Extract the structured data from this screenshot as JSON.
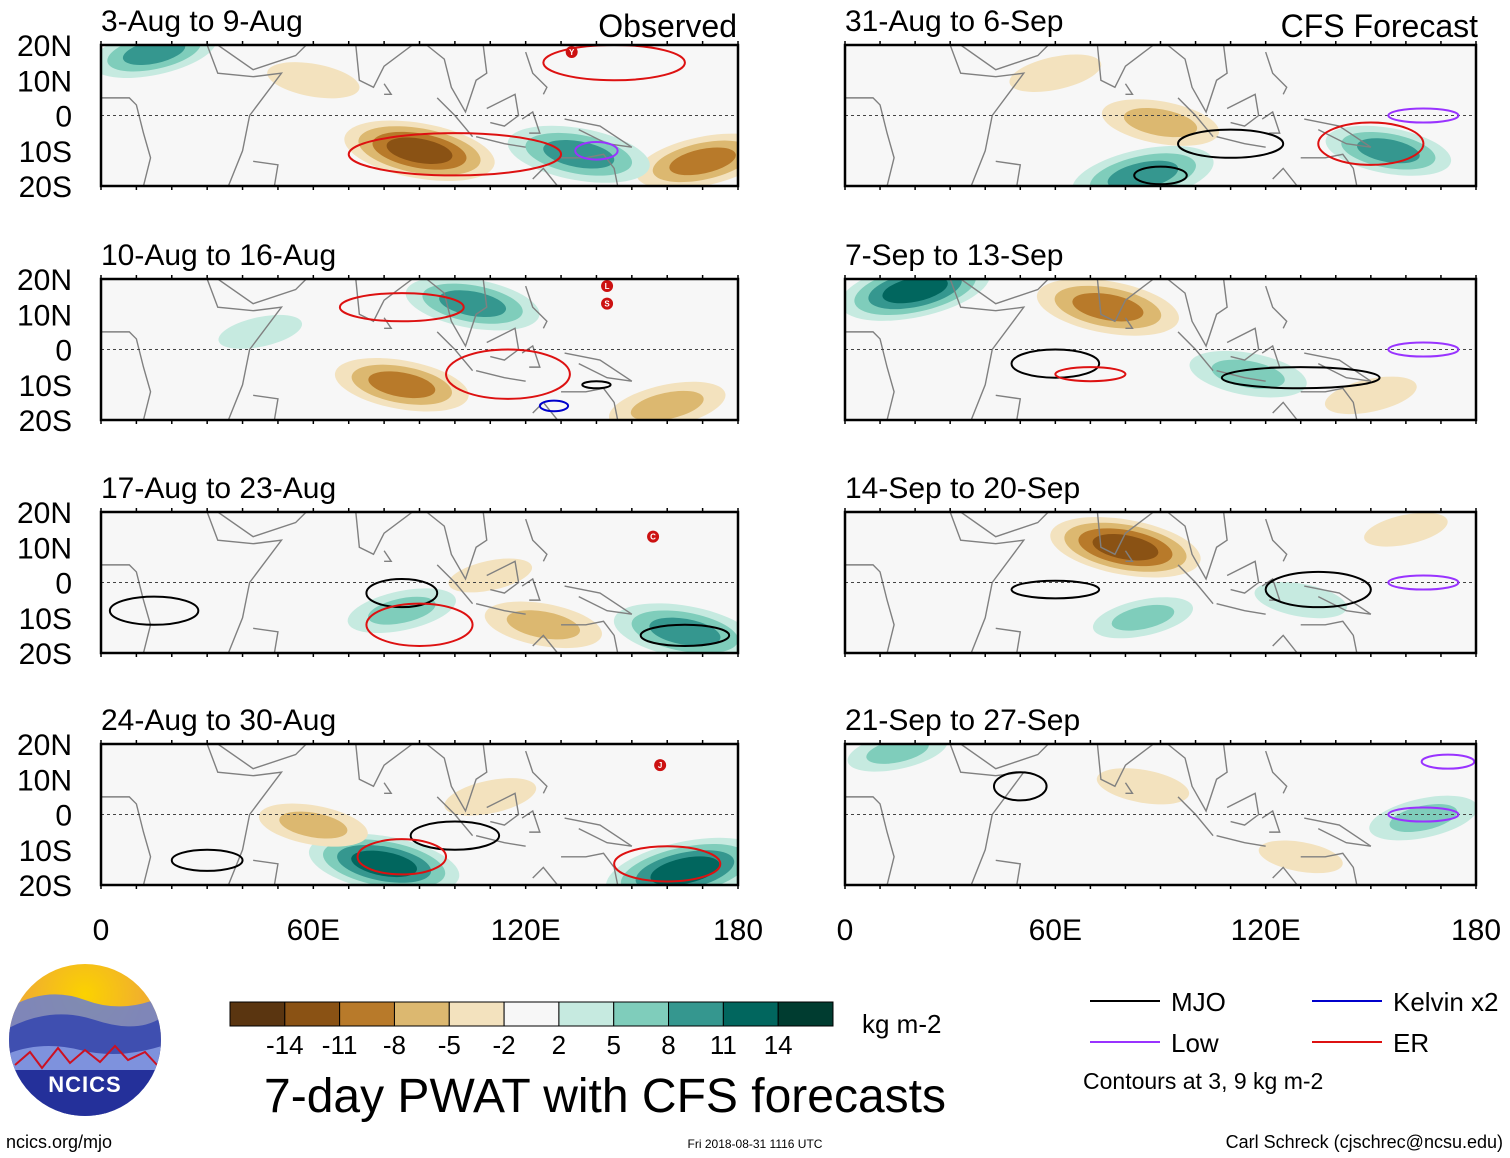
{
  "figure": {
    "observed_label": "Observed",
    "forecast_label": "CFS Forecast",
    "main_title": "7-day PWAT with CFS forecasts",
    "url": "ncics.org/mjo",
    "timestamp": "Fri 2018-08-31 1116 UTC",
    "author": "Carl Schreck (cjschrec@ncsu.edu)",
    "logo_text": "NCICS"
  },
  "colors": {
    "dry": [
      "#5a3510",
      "#8a5214",
      "#b87a2a",
      "#dcb870",
      "#f3e2be"
    ],
    "neutral": "#f7f7f7",
    "wet": [
      "#c6eae0",
      "#7fcdbb",
      "#35978f",
      "#01665e",
      "#003c30"
    ],
    "mjo": "#000000",
    "low": "#9933ff",
    "kelvin": "#0000cc",
    "er": "#dd1111",
    "land": "#808080"
  },
  "legend": {
    "colorbar_ticks": [
      "-14",
      "-11",
      "-8",
      "-5",
      "-2",
      "2",
      "5",
      "8",
      "11",
      "14"
    ],
    "units": "kg m-2",
    "contours": [
      {
        "name": "MJO",
        "color": "#000000"
      },
      {
        "name": "Kelvin x2",
        "color": "#0000cc"
      },
      {
        "name": "Low",
        "color": "#9933ff"
      },
      {
        "name": "ER",
        "color": "#dd1111"
      }
    ],
    "contour_note": "Contours at 3, 9 kg m-2"
  },
  "chart_data": {
    "type": "heatmap",
    "variable": "7-day precipitable water anomaly (PWAT)",
    "units": "kg m-2",
    "x_ticks": [
      "0",
      "60E",
      "120E",
      "180"
    ],
    "y_ticks": [
      "20N",
      "10N",
      "0",
      "10S",
      "20S"
    ],
    "xlim": [
      0,
      180
    ],
    "ylim": [
      -20,
      20
    ],
    "levels": [
      -14,
      -11,
      -8,
      -5,
      -2,
      2,
      5,
      8,
      11,
      14
    ],
    "panels": [
      {
        "period": "3-Aug to 9-Aug",
        "source": "Observed",
        "features": [
          {
            "lon": 90,
            "lat": -10,
            "value": -11
          },
          {
            "lon": 170,
            "lat": -13,
            "value": -9
          },
          {
            "lon": 135,
            "lat": -11,
            "value": 10
          },
          {
            "lon": 15,
            "lat": 18,
            "value": 8
          },
          {
            "lon": 60,
            "lat": 10,
            "value": -4
          }
        ],
        "contours": [
          {
            "type": "ER",
            "lon": 100,
            "lat": -11,
            "w": 60,
            "h": 12
          },
          {
            "type": "ER",
            "lon": 145,
            "lat": 15,
            "w": 40,
            "h": 10
          },
          {
            "type": "Low",
            "lon": 140,
            "lat": -10,
            "w": 12,
            "h": 5
          }
        ],
        "storms": [
          {
            "lon": 133,
            "lat": 18,
            "label": "Y"
          }
        ]
      },
      {
        "period": "10-Aug to 16-Aug",
        "source": "Observed",
        "features": [
          {
            "lon": 85,
            "lat": -10,
            "value": -9
          },
          {
            "lon": 160,
            "lat": -16,
            "value": -7
          },
          {
            "lon": 105,
            "lat": 13,
            "value": 9
          },
          {
            "lon": 45,
            "lat": 5,
            "value": 3
          }
        ],
        "contours": [
          {
            "type": "ER",
            "lon": 115,
            "lat": -7,
            "w": 35,
            "h": 14
          },
          {
            "type": "ER",
            "lon": 85,
            "lat": 12,
            "w": 35,
            "h": 8
          },
          {
            "type": "Kelvin x2",
            "lon": 128,
            "lat": -16,
            "w": 8,
            "h": 3
          },
          {
            "type": "MJO",
            "lon": 140,
            "lat": -10,
            "w": 8,
            "h": 2
          }
        ],
        "storms": [
          {
            "lon": 143,
            "lat": 18,
            "label": "L"
          },
          {
            "lon": 143,
            "lat": 13,
            "label": "S"
          }
        ]
      },
      {
        "period": "17-Aug to 23-Aug",
        "source": "Observed",
        "features": [
          {
            "lon": 125,
            "lat": -12,
            "value": -7
          },
          {
            "lon": 110,
            "lat": 2,
            "value": -3
          },
          {
            "lon": 165,
            "lat": -14,
            "value": 10
          },
          {
            "lon": 85,
            "lat": -8,
            "value": 6
          }
        ],
        "contours": [
          {
            "type": "MJO",
            "lon": 15,
            "lat": -8,
            "w": 25,
            "h": 8
          },
          {
            "type": "MJO",
            "lon": 85,
            "lat": -3,
            "w": 20,
            "h": 8
          },
          {
            "type": "MJO",
            "lon": 165,
            "lat": -15,
            "w": 25,
            "h": 6
          },
          {
            "type": "ER",
            "lon": 90,
            "lat": -12,
            "w": 30,
            "h": 12
          }
        ],
        "storms": [
          {
            "lon": 156,
            "lat": 13,
            "label": "C"
          }
        ]
      },
      {
        "period": "24-Aug to 30-Aug",
        "source": "Observed",
        "features": [
          {
            "lon": 80,
            "lat": -14,
            "value": 11
          },
          {
            "lon": 165,
            "lat": -16,
            "value": 12
          },
          {
            "lon": 60,
            "lat": -3,
            "value": -6
          },
          {
            "lon": 110,
            "lat": 5,
            "value": -4
          }
        ],
        "contours": [
          {
            "type": "MJO",
            "lon": 100,
            "lat": -6,
            "w": 25,
            "h": 8
          },
          {
            "type": "MJO",
            "lon": 30,
            "lat": -13,
            "w": 20,
            "h": 6
          },
          {
            "type": "ER",
            "lon": 85,
            "lat": -12,
            "w": 25,
            "h": 10
          },
          {
            "type": "ER",
            "lon": 160,
            "lat": -14,
            "w": 30,
            "h": 10
          }
        ],
        "storms": [
          {
            "lon": 158,
            "lat": 14,
            "label": "J"
          }
        ]
      },
      {
        "period": "31-Aug to 6-Sep",
        "source": "CFS Forecast",
        "features": [
          {
            "lon": 90,
            "lat": -2,
            "value": -7
          },
          {
            "lon": 85,
            "lat": -17,
            "value": 10
          },
          {
            "lon": 155,
            "lat": -10,
            "value": 8
          },
          {
            "lon": 60,
            "lat": 12,
            "value": -4
          }
        ],
        "contours": [
          {
            "type": "MJO",
            "lon": 110,
            "lat": -8,
            "w": 30,
            "h": 8
          },
          {
            "type": "MJO",
            "lon": 90,
            "lat": -17,
            "w": 15,
            "h": 5
          },
          {
            "type": "ER",
            "lon": 150,
            "lat": -8,
            "w": 30,
            "h": 12
          },
          {
            "type": "Low",
            "lon": 165,
            "lat": 0,
            "w": 20,
            "h": 4
          }
        ],
        "storms": []
      },
      {
        "period": "7-Sep to 13-Sep",
        "source": "CFS Forecast",
        "features": [
          {
            "lon": 75,
            "lat": 12,
            "value": -10
          },
          {
            "lon": 20,
            "lat": 17,
            "value": 11
          },
          {
            "lon": 115,
            "lat": -7,
            "value": 7
          },
          {
            "lon": 150,
            "lat": -13,
            "value": -4
          }
        ],
        "contours": [
          {
            "type": "MJO",
            "lon": 60,
            "lat": -4,
            "w": 25,
            "h": 8
          },
          {
            "type": "MJO",
            "lon": 130,
            "lat": -8,
            "w": 45,
            "h": 6
          },
          {
            "type": "ER",
            "lon": 70,
            "lat": -7,
            "w": 20,
            "h": 4
          },
          {
            "type": "Low",
            "lon": 165,
            "lat": 0,
            "w": 20,
            "h": 4
          }
        ],
        "storms": []
      },
      {
        "period": "14-Sep to 20-Sep",
        "source": "CFS Forecast",
        "features": [
          {
            "lon": 80,
            "lat": 10,
            "value": -11
          },
          {
            "lon": 85,
            "lat": -10,
            "value": 5
          },
          {
            "lon": 130,
            "lat": -5,
            "value": 4
          },
          {
            "lon": 160,
            "lat": 15,
            "value": -3
          }
        ],
        "contours": [
          {
            "type": "MJO",
            "lon": 60,
            "lat": -2,
            "w": 25,
            "h": 5
          },
          {
            "type": "MJO",
            "lon": 135,
            "lat": -2,
            "w": 30,
            "h": 10
          },
          {
            "type": "Low",
            "lon": 165,
            "lat": 0,
            "w": 20,
            "h": 4
          }
        ],
        "storms": []
      },
      {
        "period": "21-Sep to 27-Sep",
        "source": "CFS Forecast",
        "features": [
          {
            "lon": 85,
            "lat": 8,
            "value": -4
          },
          {
            "lon": 165,
            "lat": -1,
            "value": 6
          },
          {
            "lon": 130,
            "lat": -12,
            "value": -3
          },
          {
            "lon": 15,
            "lat": 18,
            "value": 5
          }
        ],
        "contours": [
          {
            "type": "MJO",
            "lon": 50,
            "lat": 8,
            "w": 15,
            "h": 8
          },
          {
            "type": "Low",
            "lon": 165,
            "lat": 0,
            "w": 20,
            "h": 4
          },
          {
            "type": "Low",
            "lon": 172,
            "lat": 15,
            "w": 15,
            "h": 4
          }
        ],
        "storms": []
      }
    ]
  }
}
